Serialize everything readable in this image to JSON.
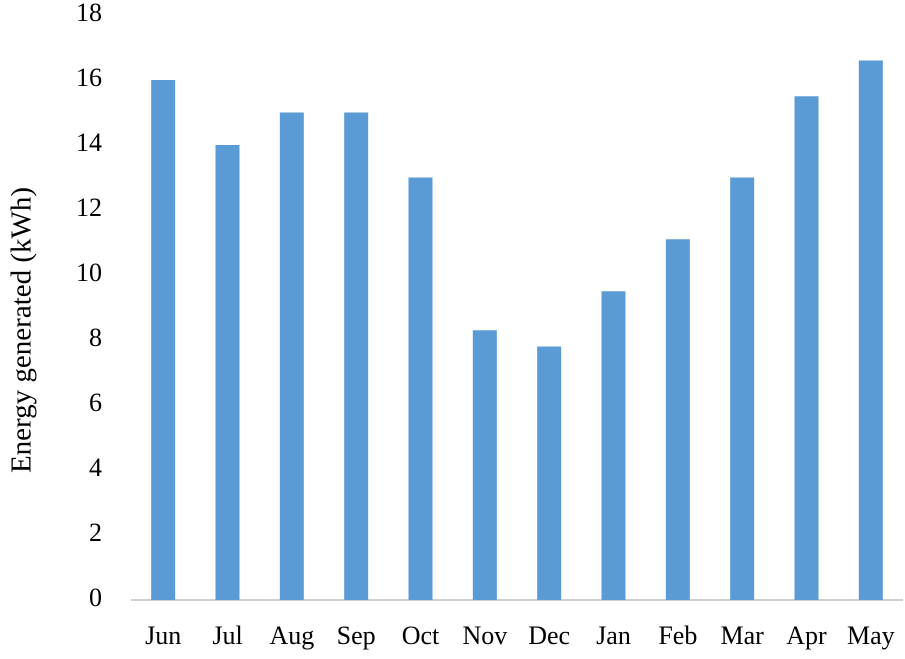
{
  "chart_data": {
    "type": "bar",
    "ylabel": "Energy generated (kWh)",
    "categories": [
      "Jun",
      "Jul",
      "Aug",
      "Sep",
      "Oct",
      "Nov",
      "Dec",
      "Jan",
      "Feb",
      "Mar",
      "Apr",
      "May"
    ],
    "values": [
      16,
      14,
      15,
      15,
      13,
      8.3,
      7.8,
      9.5,
      11.1,
      13,
      15.5,
      16.6
    ],
    "color": "#5b9bd5",
    "ylim": [
      0,
      18
    ],
    "yticks": [
      0,
      2,
      4,
      6,
      8,
      10,
      12,
      14,
      16,
      18
    ],
    "grid": false
  }
}
